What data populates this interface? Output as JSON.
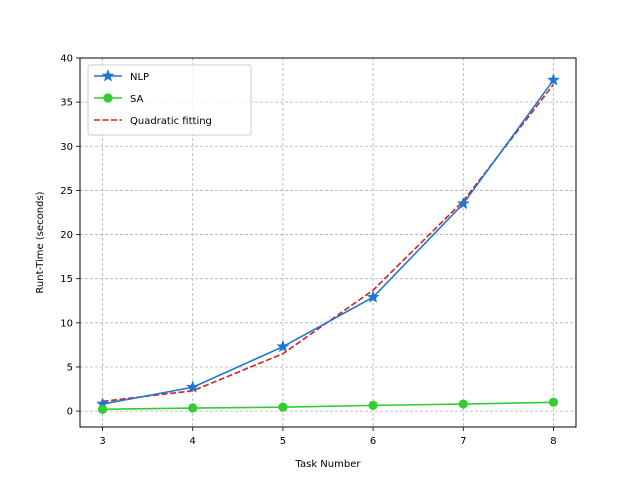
{
  "chart_data": {
    "type": "line",
    "title": "",
    "xlabel": "Task Number",
    "ylabel": "Runt-Time (seconds)",
    "x": [
      3,
      4,
      5,
      6,
      7,
      8
    ],
    "xlim": [
      2.75,
      8.25
    ],
    "ylim": [
      -1.8,
      40
    ],
    "xticks": [
      3,
      4,
      5,
      6,
      7,
      8
    ],
    "yticks": [
      0,
      5,
      10,
      15,
      20,
      25,
      30,
      35,
      40
    ],
    "grid": true,
    "legend_position": "top-left",
    "series": [
      {
        "name": "NLP",
        "values": [
          0.8,
          2.7,
          7.3,
          12.9,
          23.5,
          37.5
        ],
        "color": "#1f77d4",
        "style": "solid",
        "marker": "star"
      },
      {
        "name": "SA",
        "values": [
          0.2,
          0.35,
          0.45,
          0.65,
          0.8,
          1.0
        ],
        "color": "#33cc33",
        "style": "solid",
        "marker": "circle"
      },
      {
        "name": "Quadratic fitting",
        "values": [
          1.1,
          2.3,
          6.5,
          13.7,
          23.8,
          37.0
        ],
        "color": "#d62020",
        "style": "dashed",
        "marker": "none"
      }
    ]
  }
}
